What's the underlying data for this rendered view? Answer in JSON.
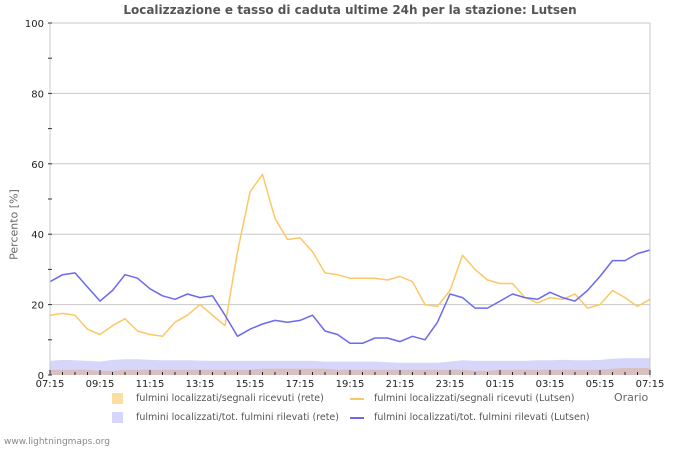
{
  "page": {
    "title": "Localizzazione e tasso di caduta ultime 24h per la stazione: Lutsen",
    "footer": "www.lightningmaps.org"
  },
  "chart_data": {
    "type": "line",
    "title": "Localizzazione e tasso di caduta ultime 24h per la stazione: Lutsen",
    "xlabel": "Orario",
    "ylabel": "Percento   [%]",
    "ylim": [
      0,
      100
    ],
    "yticks": [
      0,
      20,
      40,
      60,
      80,
      100
    ],
    "grid": true,
    "legend_position": "bottom",
    "xtick_labels": [
      "07:15",
      "09:15",
      "11:15",
      "13:15",
      "15:15",
      "17:15",
      "19:15",
      "21:15",
      "23:15",
      "01:15",
      "03:15",
      "05:15",
      "07:15"
    ],
    "x": [
      "07:15",
      "07:45",
      "08:15",
      "08:45",
      "09:15",
      "09:45",
      "10:15",
      "10:45",
      "11:15",
      "11:45",
      "12:15",
      "12:45",
      "13:15",
      "13:45",
      "14:15",
      "14:45",
      "15:15",
      "15:45",
      "16:15",
      "16:45",
      "17:15",
      "17:45",
      "18:15",
      "18:45",
      "19:15",
      "19:45",
      "20:15",
      "20:45",
      "21:15",
      "21:45",
      "22:15",
      "22:45",
      "23:15",
      "23:45",
      "00:15",
      "00:45",
      "01:15",
      "01:45",
      "02:15",
      "02:45",
      "03:15",
      "03:45",
      "04:15",
      "04:45",
      "05:15",
      "05:45",
      "06:15",
      "06:45",
      "07:15"
    ],
    "series": [
      {
        "name": "fulmini localizzati/segnali ricevuti (rete)",
        "style": "area",
        "color": "#fddea2",
        "values": [
          1.5,
          1.5,
          1.5,
          1.5,
          1.2,
          1.2,
          1.5,
          1.5,
          1.5,
          1.5,
          1.5,
          1.5,
          1.5,
          1.5,
          1.5,
          1.5,
          1.5,
          1.8,
          1.8,
          1.8,
          1.8,
          1.8,
          1.8,
          1.5,
          1.5,
          1.5,
          1.5,
          1.5,
          1.5,
          1.5,
          1.5,
          1.5,
          1.5,
          1.5,
          1.2,
          1.2,
          1.5,
          1.5,
          1.5,
          1.5,
          1.5,
          1.5,
          1.5,
          1.5,
          1.5,
          1.8,
          2,
          2,
          2
        ]
      },
      {
        "name": "fulmini localizzati/tot. fulmini rilevati (rete)",
        "style": "area",
        "color": "#d6d6fb",
        "values": [
          4,
          4.3,
          4.2,
          4,
          3.8,
          4.3,
          4.5,
          4.5,
          4.3,
          4.2,
          4.2,
          4.2,
          4.1,
          4,
          4,
          4,
          4,
          4,
          4,
          4,
          4,
          4,
          3.8,
          3.8,
          3.8,
          3.8,
          3.8,
          3.6,
          3.5,
          3.5,
          3.5,
          3.5,
          3.8,
          4.2,
          4,
          4,
          4,
          4,
          4,
          4.2,
          4.2,
          4.3,
          4.2,
          4.2,
          4.3,
          4.6,
          4.8,
          4.8,
          4.8
        ]
      },
      {
        "name": "fulmini localizzati/segnali ricevuti (Lutsen)",
        "style": "line",
        "color": "#fcc865",
        "values": [
          17,
          17.5,
          17,
          13,
          11.5,
          14,
          16,
          12.5,
          11.5,
          11,
          15,
          17,
          20,
          17,
          14,
          35,
          52,
          57,
          44.5,
          38.5,
          39,
          35,
          29,
          28.5,
          27.5,
          27.5,
          27.5,
          27,
          28,
          26.5,
          20,
          19.5,
          24,
          34,
          30,
          27,
          26,
          26,
          22,
          20.5,
          22,
          21.5,
          23,
          19,
          20,
          24,
          22,
          19.5,
          21.5
        ]
      },
      {
        "name": "fulmini localizzati/tot. fulmini rilevati (Lutsen)",
        "style": "line",
        "color": "#6a6af0",
        "values": [
          26.5,
          28.5,
          29,
          25,
          21,
          24,
          28.5,
          27.5,
          24.5,
          22.5,
          21.5,
          23,
          22,
          22.5,
          17,
          11,
          13,
          14.5,
          15.5,
          15,
          15.5,
          17,
          12.5,
          11.5,
          9,
          9,
          10.5,
          10.5,
          9.5,
          11,
          10,
          15,
          23,
          22,
          19,
          19,
          21,
          23,
          22,
          21.5,
          23.5,
          22,
          21,
          24,
          28,
          32.5,
          32.5,
          34.5,
          35.5
        ]
      }
    ]
  },
  "legend": {
    "items": [
      {
        "label": "fulmini localizzati/segnali ricevuti (rete)"
      },
      {
        "label": "fulmini localizzati/segnali ricevuti (Lutsen)"
      },
      {
        "label": "fulmini localizzati/tot. fulmini rilevati (rete)"
      },
      {
        "label": "fulmini localizzati/tot. fulmini rilevati (Lutsen)"
      }
    ]
  }
}
